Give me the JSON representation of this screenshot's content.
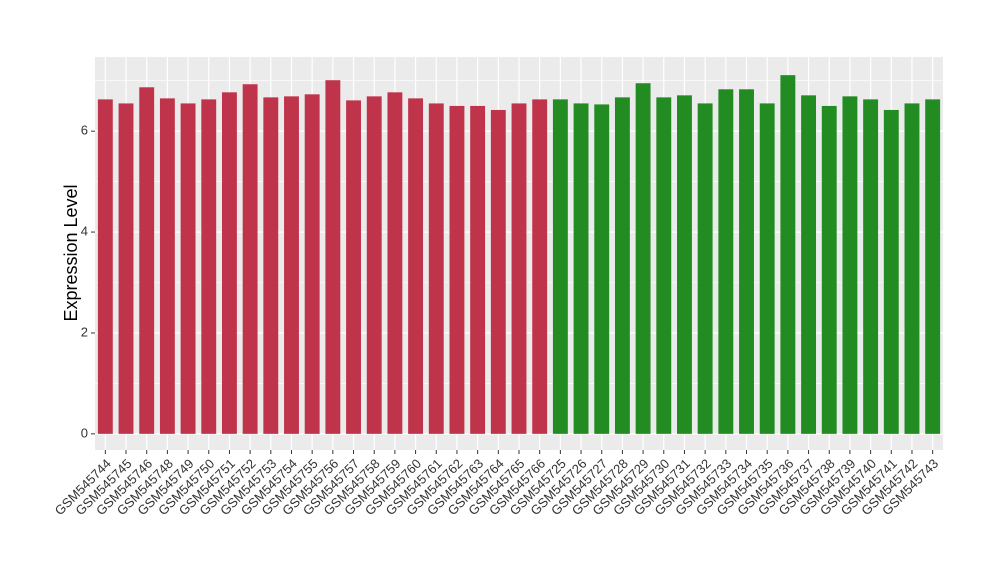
{
  "chart_data": {
    "type": "bar",
    "y_label": "Expression Level",
    "categories": [
      "GSM545744",
      "GSM545745",
      "GSM545746",
      "GSM545748",
      "GSM545749",
      "GSM545750",
      "GSM545751",
      "GSM545752",
      "GSM545753",
      "GSM545754",
      "GSM545755",
      "GSM545756",
      "GSM545757",
      "GSM545758",
      "GSM545759",
      "GSM545760",
      "GSM545761",
      "GSM545762",
      "GSM545763",
      "GSM545764",
      "GSM545765",
      "GSM545766",
      "GSM545725",
      "GSM545726",
      "GSM545727",
      "GSM545728",
      "GSM545729",
      "GSM545730",
      "GSM545731",
      "GSM545732",
      "GSM545733",
      "GSM545734",
      "GSM545735",
      "GSM545736",
      "GSM545737",
      "GSM545738",
      "GSM545739",
      "GSM545740",
      "GSM545741",
      "GSM545742",
      "GSM545743"
    ],
    "values": [
      6.63,
      6.55,
      6.87,
      6.65,
      6.55,
      6.63,
      6.77,
      6.93,
      6.67,
      6.69,
      6.73,
      7.01,
      6.61,
      6.69,
      6.77,
      6.65,
      6.55,
      6.5,
      6.5,
      6.42,
      6.55,
      6.63,
      6.63,
      6.55,
      6.53,
      6.67,
      6.95,
      6.67,
      6.71,
      6.55,
      6.83,
      6.83,
      6.55,
      7.11,
      6.71,
      6.5,
      6.69,
      6.63,
      6.42,
      6.55,
      6.63
    ],
    "colors": [
      "#c0344b",
      "#c0344b",
      "#c0344b",
      "#c0344b",
      "#c0344b",
      "#c0344b",
      "#c0344b",
      "#c0344b",
      "#c0344b",
      "#c0344b",
      "#c0344b",
      "#c0344b",
      "#c0344b",
      "#c0344b",
      "#c0344b",
      "#c0344b",
      "#c0344b",
      "#c0344b",
      "#c0344b",
      "#c0344b",
      "#c0344b",
      "#c0344b",
      "#228b22",
      "#228b22",
      "#228b22",
      "#228b22",
      "#228b22",
      "#228b22",
      "#228b22",
      "#228b22",
      "#228b22",
      "#228b22",
      "#228b22",
      "#228b22",
      "#228b22",
      "#228b22",
      "#228b22",
      "#228b22",
      "#228b22",
      "#228b22",
      "#228b22"
    ],
    "ylim": [
      -0.32,
      7.47
    ],
    "yticks": [
      0,
      2,
      4,
      6
    ],
    "minor_yticks": [
      1,
      3,
      5,
      7
    ],
    "grid": true
  }
}
